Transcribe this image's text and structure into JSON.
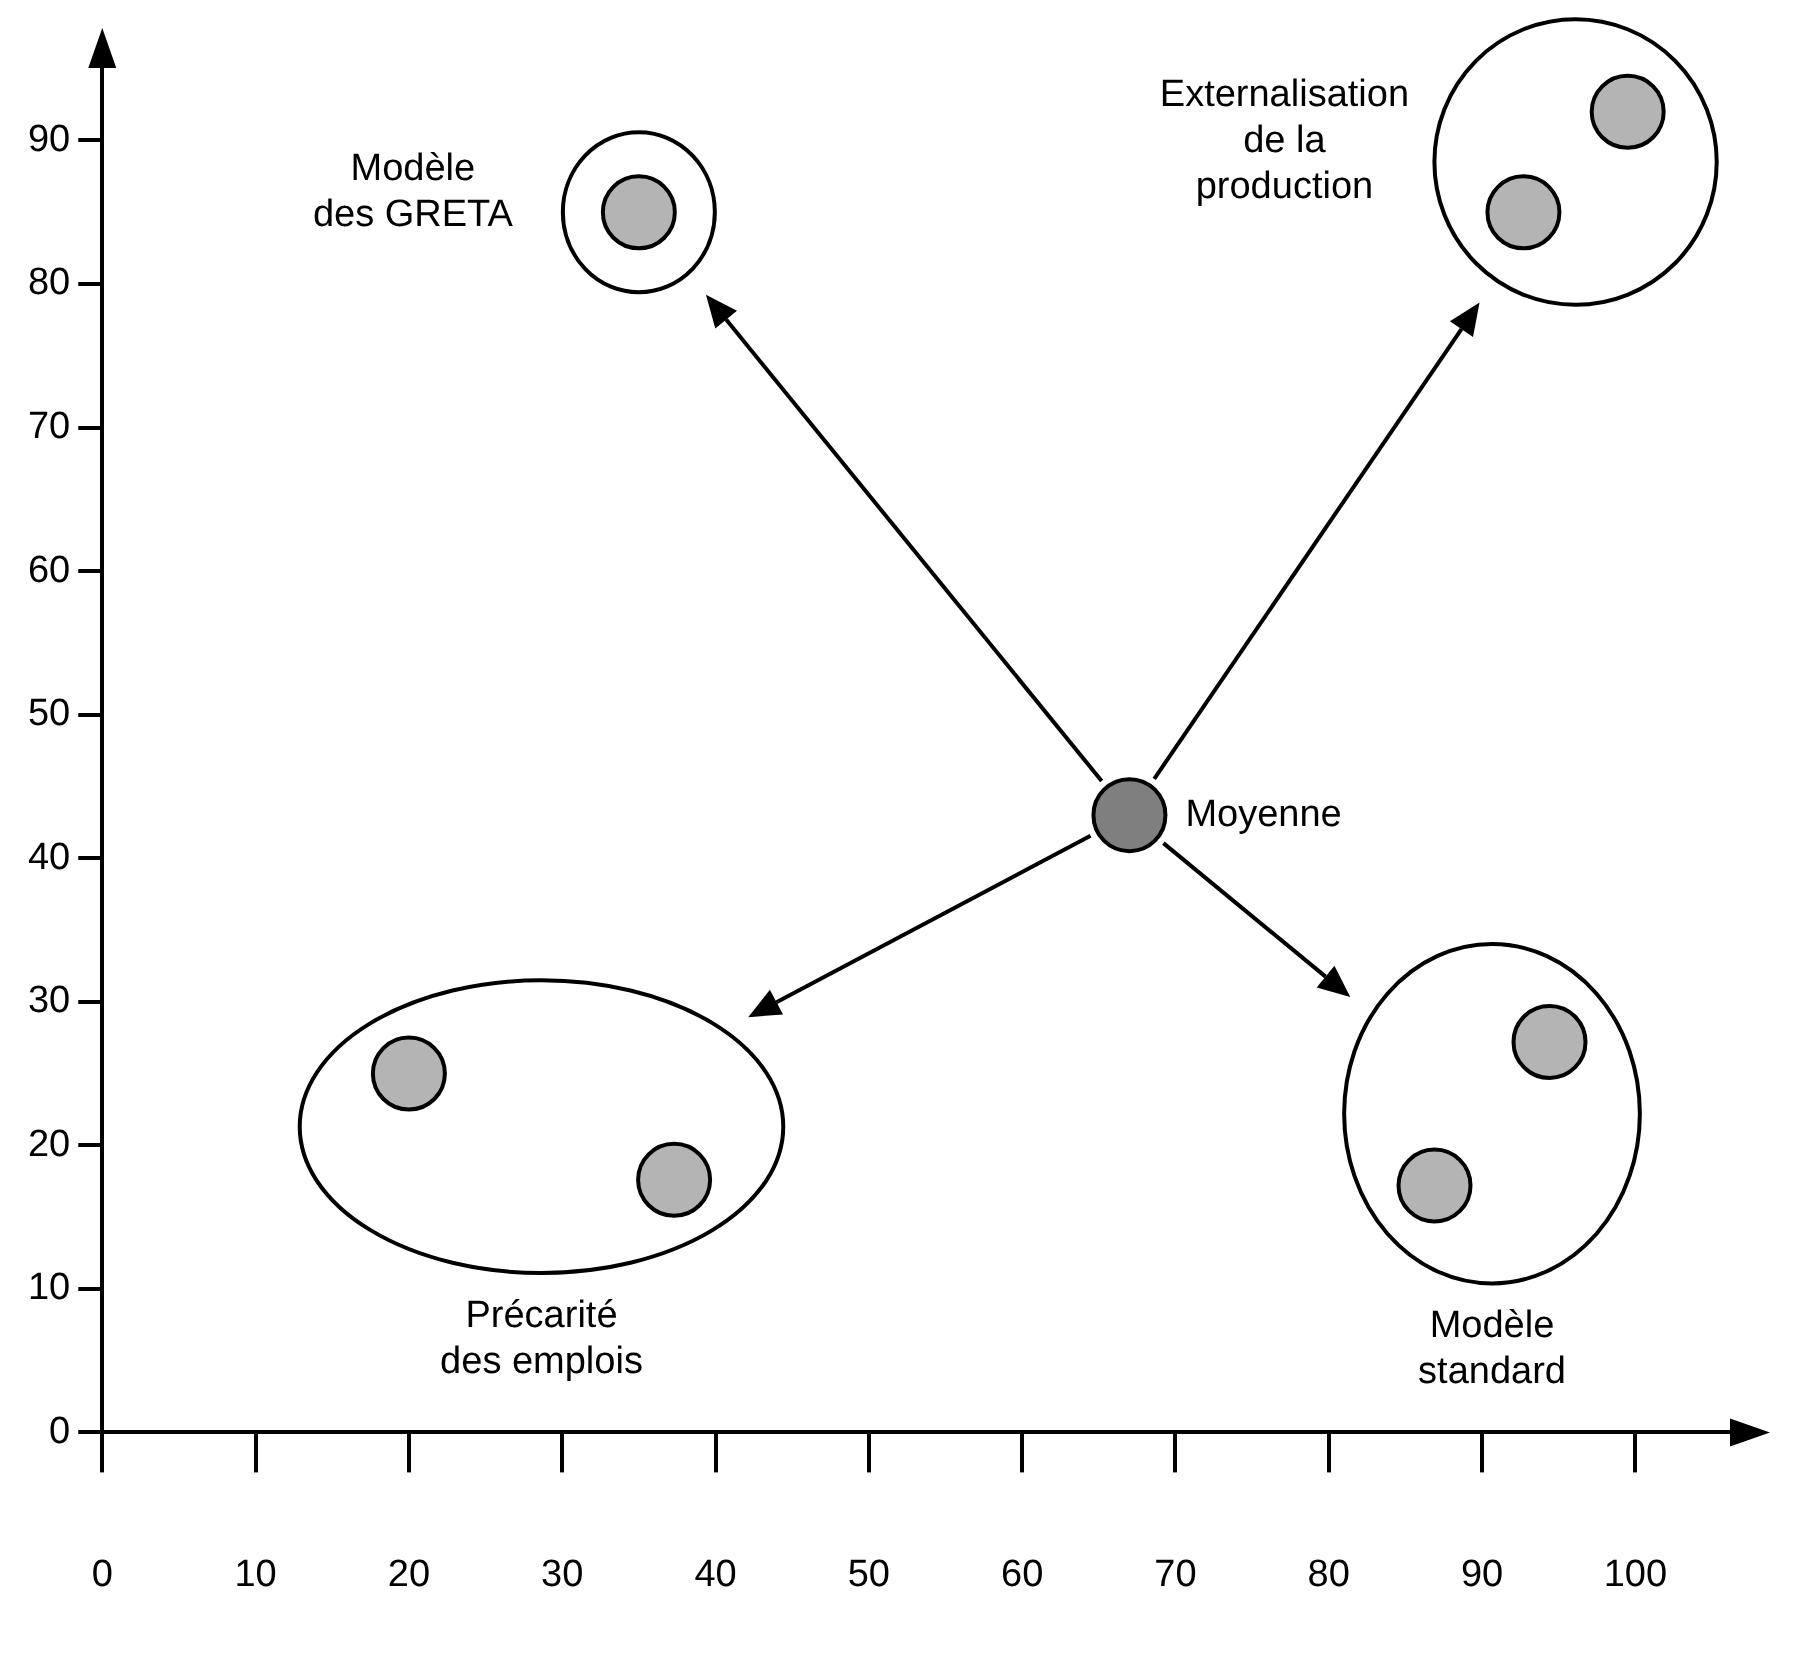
{
  "chart_data": {
    "type": "scatter",
    "series": [
      {
        "x": [
          35
        ],
        "values": [
          85
        ],
        "color": "#b4b4b4"
      },
      {
        "x": [
          92.7,
          99.5
        ],
        "values": [
          85,
          92
        ],
        "color": "#b4b4b4"
      },
      {
        "x": [
          20,
          37.3
        ],
        "values": [
          25,
          17.6
        ],
        "color": "#b4b4b4"
      },
      {
        "x": [
          94.4,
          86.9
        ],
        "values": [
          27.2,
          17.2
        ],
        "color": "#b4b4b4"
      },
      {
        "x": [
          67
        ],
        "values": [
          43
        ],
        "color": "#7f7f7f"
      }
    ],
    "xlim": [
      0,
      108
    ],
    "ylim": [
      0,
      97
    ],
    "xticks": [
      0,
      10,
      20,
      30,
      40,
      50,
      60,
      70,
      80,
      90,
      100
    ],
    "yticks": [
      0,
      10,
      20,
      30,
      40,
      50,
      60,
      70,
      80,
      90
    ],
    "annotations": [
      "Modèle\ndes GRETA",
      "Externalisation\nde la\nproduction",
      "Précarité\ndes emplois",
      "Modèle\nstandard",
      "Moyenne"
    ],
    "grid": false,
    "legend": false,
    "marker": "circle"
  }
}
